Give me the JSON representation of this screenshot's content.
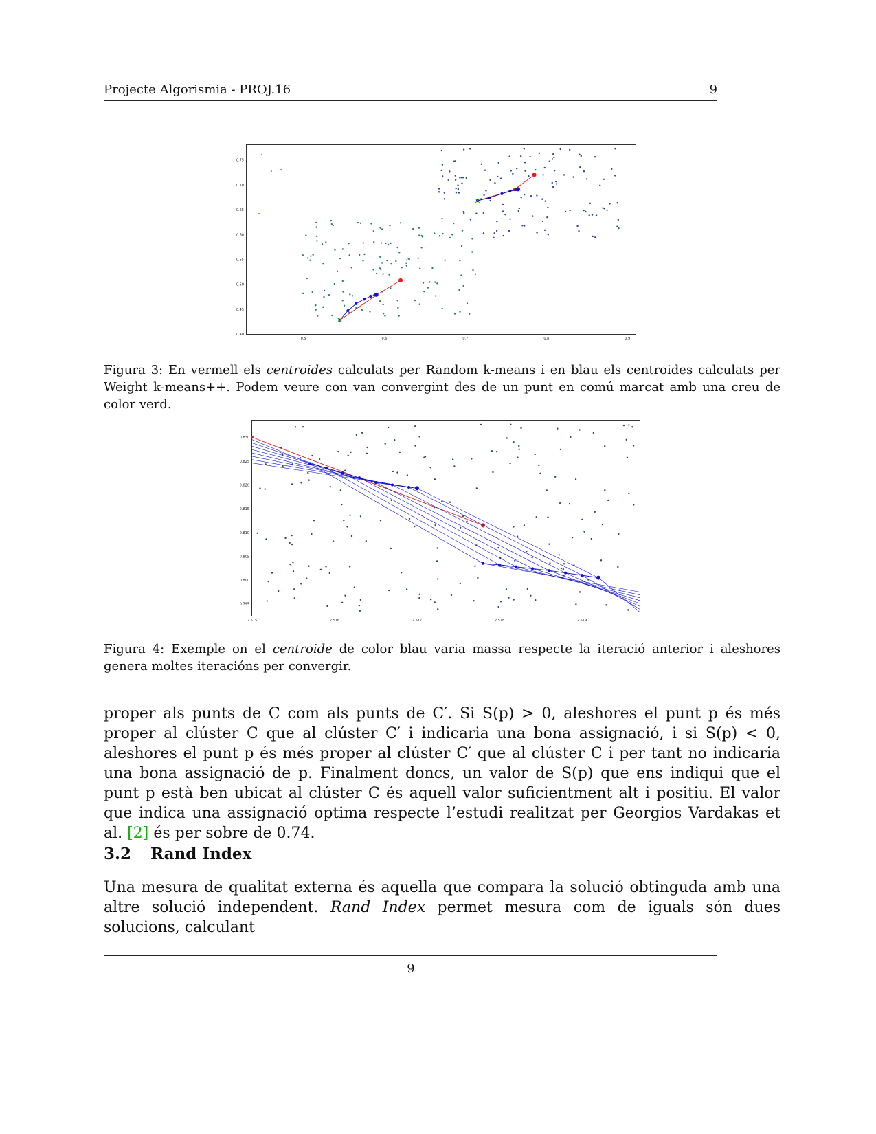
{
  "header": {
    "title": "Projecte Algorismia - PROJ.16",
    "page_number": "9"
  },
  "figure3": {
    "caption_label": "Figura 3:",
    "caption_pre": "En vermell els",
    "caption_em": "centroides",
    "caption_post": "calculats per Random k-means i en blau els centroides calculats per Weight k-means++. Podem veure con van convergint des de un punt en comú marcat amb una creu de color verd."
  },
  "figure4": {
    "caption_label": "Figura 4:",
    "caption_pre": "Exemple on el",
    "caption_em": "centroide",
    "caption_post": "de color blau varia massa respecte la iteració anterior i aleshores genera moltes iteracións per convergir."
  },
  "body": {
    "paragraph1_a": "proper als punts de C com als punts de C′. Si S(p) > 0, aleshores el punt p és més proper al clúster C que al clúster C′ i indicaria una bona assignació, i si S(p) < 0, aleshores el punt p és més proper al clúster C′ que al clúster C i per tant no indicaria una bona assignació de p. Finalment doncs, un valor de S(p) que ens indiqui que el punt p està ben ubicat al clúster C és aquell valor suficientment alt i positiu. El valor que indica una assignació optima respecte l’estudi realitzat per Georgios Vardakas et al.",
    "citation": "[2]",
    "paragraph1_b": "és per sobre de 0.74.",
    "section_number": "3.2",
    "section_title": "Rand Index",
    "paragraph2_a": "Una mesura de qualitat externa és aquella que compara la solució obtinguda amb una altre solució independent.",
    "paragraph2_em": "Rand Index",
    "paragraph2_b": "permet mesura com de iguals són dues solucions, calculant"
  },
  "footer": {
    "page_number": "9"
  },
  "colors": {
    "red_centroid": "#e02020",
    "blue_centroid": "#1010d0",
    "points": "#2a4a6a",
    "cluster_teal": "#2a7a7a",
    "cluster_orange": "#c8a030",
    "link": "#13b213"
  },
  "chart_data": [
    {
      "type": "scatter",
      "title": "",
      "xlabel": "",
      "ylabel": "",
      "xlim": [
        0.43,
        0.91
      ],
      "ylim": [
        0.4,
        0.78
      ],
      "x_ticks": [
        "0.5",
        "0.6",
        "0.7",
        "0.8",
        "0.9"
      ],
      "y_ticks": [
        "0.40",
        "0.45",
        "0.50",
        "0.55",
        "0.60",
        "0.65",
        "0.70",
        "0.75"
      ],
      "series": [
        {
          "role": "red_path_cluster1",
          "color": "#e02020",
          "x": [
            0.545,
            0.59,
            0.62
          ],
          "y": [
            0.428,
            0.478,
            0.508
          ]
        },
        {
          "role": "blue_path_cluster1",
          "color": "#1010d0",
          "x": [
            0.545,
            0.555,
            0.565,
            0.575,
            0.583,
            0.588,
            0.59
          ],
          "y": [
            0.428,
            0.447,
            0.461,
            0.47,
            0.476,
            0.478,
            0.479
          ]
        },
        {
          "role": "red_path_cluster2",
          "color": "#e02020",
          "x": [
            0.715,
            0.76,
            0.785
          ],
          "y": [
            0.668,
            0.69,
            0.72
          ]
        },
        {
          "role": "blue_path_cluster2",
          "color": "#1010d0",
          "x": [
            0.715,
            0.73,
            0.745,
            0.755,
            0.762,
            0.765
          ],
          "y": [
            0.668,
            0.674,
            0.682,
            0.687,
            0.69,
            0.691
          ]
        }
      ]
    },
    {
      "type": "line",
      "title": "",
      "xlabel": "",
      "ylabel": "",
      "xlim": [
        2.515,
        2.5197
      ],
      "ylim": [
        0.7925,
        0.8335
      ],
      "x_ticks": [
        "2.515",
        "2.516",
        "2.517",
        "2.518",
        "2.519"
      ],
      "y_ticks": [
        "0.795",
        "0.800",
        "0.805",
        "0.810",
        "0.815",
        "0.820",
        "0.825",
        "0.830"
      ],
      "series": [
        {
          "role": "red_centroid_path",
          "color": "#e02020",
          "x": [
            2.515,
            2.5178
          ],
          "y": [
            0.83,
            0.8115
          ]
        },
        {
          "role": "blue_oscillation_high",
          "color": "#1010d0",
          "x": [
            2.5157,
            2.5159,
            2.5161,
            2.5163,
            2.5165,
            2.5167,
            2.5169,
            2.517
          ],
          "y": [
            0.8245,
            0.8235,
            0.8225,
            0.8215,
            0.8205,
            0.82,
            0.8195,
            0.8193
          ]
        },
        {
          "role": "blue_oscillation_low",
          "color": "#1010d0",
          "x": [
            2.5178,
            2.518,
            2.5182,
            2.5184,
            2.5186,
            2.5188,
            2.519,
            2.5192
          ],
          "y": [
            0.8035,
            0.8032,
            0.8028,
            0.8024,
            0.802,
            0.8015,
            0.801,
            0.8005
          ]
        }
      ]
    }
  ]
}
